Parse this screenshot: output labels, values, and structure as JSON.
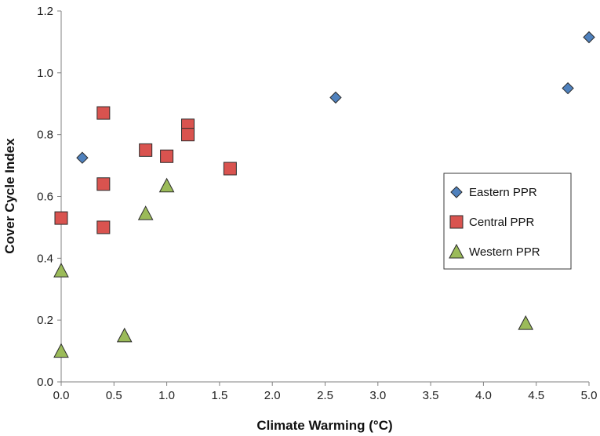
{
  "chart_data": {
    "type": "scatter",
    "xlabel": "Climate Warming (°C)",
    "ylabel": "Cover Cycle Index",
    "xlim": [
      0,
      5
    ],
    "ylim": [
      0,
      1.2
    ],
    "xticks": [
      "0.0",
      "0.5",
      "1.0",
      "1.5",
      "2.0",
      "2.5",
      "3.0",
      "3.5",
      "4.0",
      "4.5",
      "5.0"
    ],
    "yticks": [
      "0.0",
      "0.2",
      "0.4",
      "0.6",
      "0.8",
      "1.0",
      "1.2"
    ],
    "grid": false,
    "legend_position": "right",
    "series": [
      {
        "name": "Eastern PPR",
        "marker": "diamond",
        "color": "#4f81bd",
        "points": [
          [
            0.2,
            0.725
          ],
          [
            2.6,
            0.92
          ],
          [
            4.8,
            0.95
          ],
          [
            5.0,
            1.115
          ]
        ]
      },
      {
        "name": "Central PPR",
        "marker": "square",
        "color": "#d9534f",
        "points": [
          [
            0.0,
            0.53
          ],
          [
            0.4,
            0.87
          ],
          [
            0.4,
            0.64
          ],
          [
            0.4,
            0.5
          ],
          [
            0.8,
            0.75
          ],
          [
            1.0,
            0.73
          ],
          [
            1.2,
            0.83
          ],
          [
            1.2,
            0.8
          ],
          [
            1.6,
            0.69
          ]
        ]
      },
      {
        "name": "Western PPR",
        "marker": "triangle",
        "color": "#9bbb59",
        "points": [
          [
            0.0,
            0.36
          ],
          [
            0.0,
            0.1
          ],
          [
            0.6,
            0.15
          ],
          [
            0.8,
            0.545
          ],
          [
            1.0,
            0.635
          ],
          [
            4.4,
            0.19
          ]
        ]
      }
    ]
  }
}
